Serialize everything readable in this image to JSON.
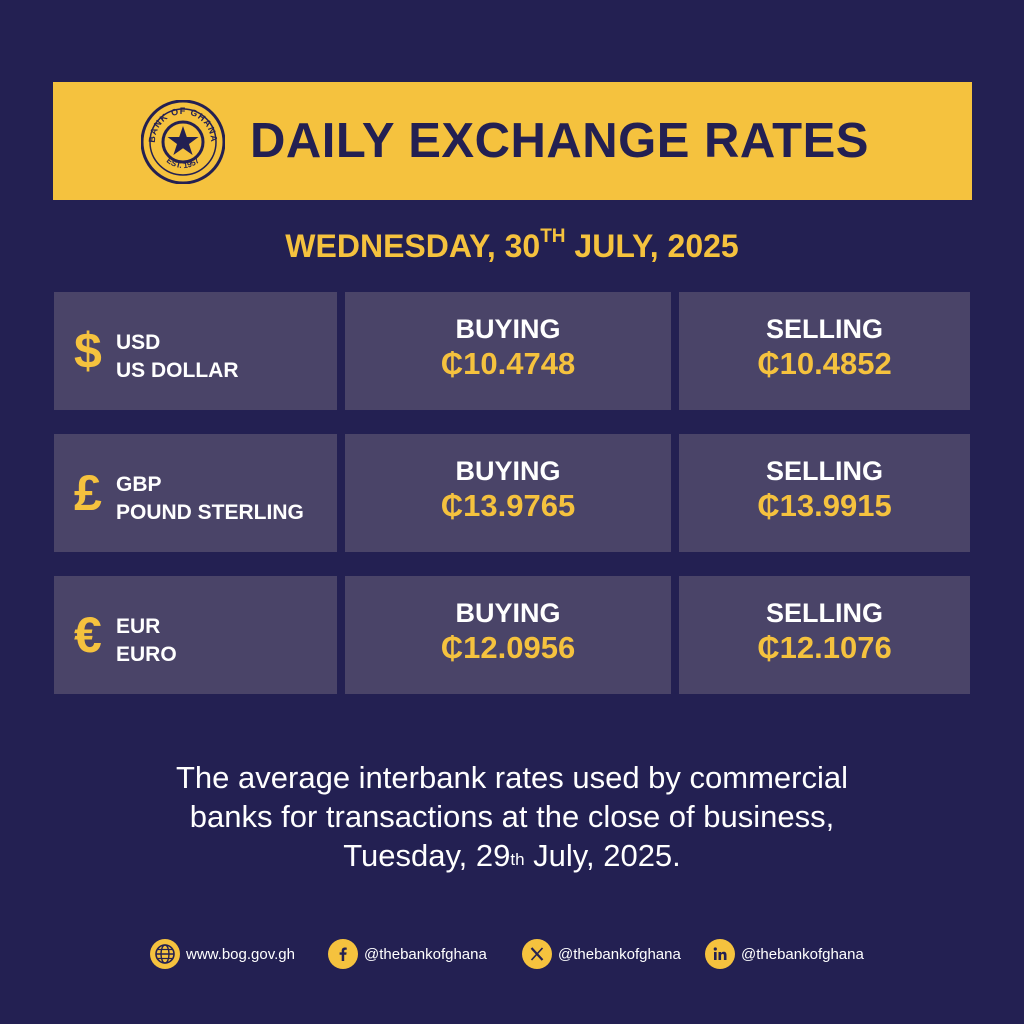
{
  "header": {
    "title": "DAILY EXCHANGE RATES",
    "seal_text_top": "BANK OF GHANA",
    "seal_text_bottom": "EST. 1957"
  },
  "date": {
    "prefix": "WEDNESDAY, 30",
    "ordinal": "TH",
    "suffix": " JULY, 2025"
  },
  "rates": [
    {
      "symbol": "$",
      "code": "USD",
      "name": "US DOLLAR",
      "buying_label": "BUYING",
      "buying": "₵10.4748",
      "selling_label": "SELLING",
      "selling": "₵10.4852"
    },
    {
      "symbol": "£",
      "code": "GBP",
      "name": "POUND STERLING",
      "buying_label": "BUYING",
      "buying": "₵13.9765",
      "selling_label": "SELLING",
      "selling": "₵13.9915"
    },
    {
      "symbol": "€",
      "code": "EUR",
      "name": "EURO",
      "buying_label": "BUYING",
      "buying": "₵12.0956",
      "selling_label": "SELLING",
      "selling": "₵12.1076"
    }
  ],
  "note": {
    "line1": "The average interbank rates used by commercial",
    "line2": "banks for transactions at the close of business,",
    "line3_prefix": "Tuesday, 29",
    "line3_ordinal": "th",
    "line3_suffix": " July, 2025."
  },
  "footer": {
    "website": "www.bog.gov.gh",
    "facebook": "@thebankofghana",
    "x": "@thebankofghana",
    "linkedin": "@thebankofghana"
  },
  "colors": {
    "background": "#232052",
    "accent": "#F5C23E",
    "cell": "#4A4468",
    "text": "#FFFFFF"
  },
  "icons": [
    "bank-of-ghana-seal",
    "globe-icon",
    "facebook-icon",
    "x-icon",
    "linkedin-icon"
  ]
}
